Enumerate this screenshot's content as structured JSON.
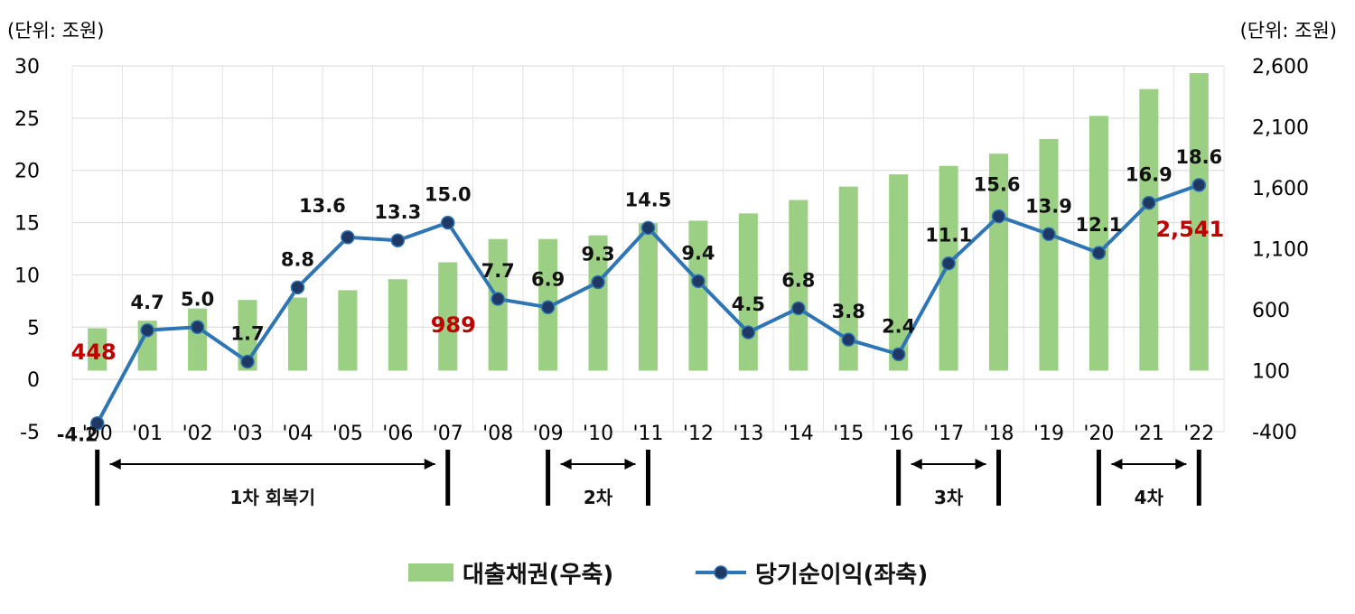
{
  "chart_data": {
    "type": "bar+line",
    "left_unit": "(단위: 조원)",
    "right_unit": "(단위: 조원)",
    "categories": [
      "'00",
      "'01",
      "'02",
      "'03",
      "'04",
      "'05",
      "'06",
      "'07",
      "'08",
      "'09",
      "'10",
      "'11",
      "'12",
      "'13",
      "'14",
      "'15",
      "'16",
      "'17",
      "'18",
      "'19",
      "'20",
      "'21",
      "'22"
    ],
    "left_axis": {
      "min": -5,
      "max": 30,
      "ticks": [
        "30",
        "25",
        "20",
        "15",
        "10",
        "5",
        "0",
        "-5"
      ]
    },
    "right_axis": {
      "min": -400,
      "max": 2600,
      "ticks": [
        "2,600",
        "2,100",
        "1,600",
        "1,100",
        "600",
        "100",
        "-400"
      ]
    },
    "series": [
      {
        "name": "대출채권(우축)",
        "kind": "bar",
        "axis": "right",
        "color": "#9bcf83",
        "values": [
          448,
          510,
          610,
          680,
          700,
          760,
          850,
          989,
          1180,
          1180,
          1210,
          1310,
          1330,
          1390,
          1500,
          1610,
          1710,
          1780,
          1880,
          2000,
          2190,
          2410,
          2541
        ]
      },
      {
        "name": "당기순이익(좌축)",
        "kind": "line",
        "axis": "left",
        "color": "#2e75b6",
        "marker_color": "#1f3864",
        "values": [
          -4.2,
          4.7,
          5.0,
          1.7,
          8.8,
          13.6,
          13.3,
          15.0,
          7.7,
          6.9,
          9.3,
          14.5,
          9.4,
          4.5,
          6.8,
          3.8,
          2.4,
          11.1,
          15.6,
          13.9,
          12.1,
          16.9,
          18.6
        ],
        "labels": [
          "-4.2",
          "4.7",
          "5.0",
          "1.7",
          "8.8",
          "13.6",
          "13.3",
          "15.0",
          "7.7",
          "6.9",
          "9.3",
          "14.5",
          "9.4",
          "4.5",
          "6.8",
          "3.8",
          "2.4",
          "11.1",
          "15.6",
          "13.9",
          "12.1",
          "16.9",
          "18.6"
        ]
      }
    ],
    "bar_value_labels": [
      {
        "index": 0,
        "text": "448"
      },
      {
        "index": 7,
        "text": "989"
      },
      {
        "index": 22,
        "text": "2,541"
      }
    ],
    "periods": [
      {
        "label": "1차 회복기",
        "from": 0,
        "to": 7
      },
      {
        "label": "2차",
        "from": 9,
        "to": 11
      },
      {
        "label": "3차",
        "from": 16,
        "to": 18
      },
      {
        "label": "4차",
        "from": 20,
        "to": 22
      }
    ],
    "legend": {
      "position": "bottom",
      "items": [
        {
          "label": "대출채권(우축)",
          "symbol": "bar",
          "color": "#9bcf83"
        },
        {
          "label": "당기순이익(좌축)",
          "symbol": "line",
          "color": "#2e75b6"
        }
      ]
    },
    "grid": true
  }
}
